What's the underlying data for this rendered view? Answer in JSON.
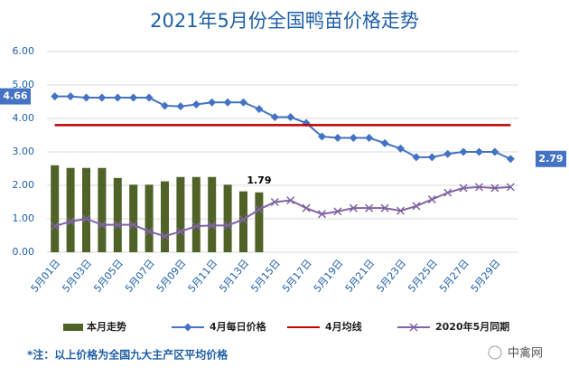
{
  "chart_data": {
    "type": "combo",
    "title": "2021年5月份全国鸭苗价格走势",
    "categories": [
      "5月01日",
      null,
      "5月03日",
      null,
      "5月05日",
      null,
      "5月07日",
      null,
      "5月09日",
      null,
      "5月11日",
      null,
      "5月13日",
      null,
      "5月15日",
      null,
      "5月17日",
      null,
      "5月19日",
      null,
      "5月21日",
      null,
      "5月23日",
      null,
      "5月25日",
      null,
      "5月27日",
      null,
      "5月29日",
      null
    ],
    "series": [
      {
        "name": "本月走势",
        "type": "bar",
        "color": "#4f6228",
        "values": [
          2.6,
          2.52,
          2.52,
          2.52,
          2.22,
          2.02,
          2.02,
          2.12,
          2.25,
          2.25,
          2.25,
          2.02,
          1.82,
          1.79,
          null,
          null,
          null,
          null,
          null,
          null,
          null,
          null,
          null,
          null,
          null,
          null,
          null,
          null,
          null,
          null
        ]
      },
      {
        "name": "4月每日价格",
        "type": "line",
        "marker": "diamond",
        "color": "#4472c4",
        "values": [
          4.66,
          4.66,
          4.62,
          4.62,
          4.62,
          4.62,
          4.62,
          4.38,
          4.36,
          4.42,
          4.48,
          4.48,
          4.48,
          4.28,
          4.04,
          4.04,
          3.86,
          3.46,
          3.42,
          3.42,
          3.42,
          3.26,
          3.1,
          2.84,
          2.84,
          2.94,
          3.0,
          3.0,
          3.0,
          2.79
        ]
      },
      {
        "name": "4月均线",
        "type": "line",
        "marker": "none",
        "color": "#c00000",
        "values": [
          3.8,
          3.8,
          3.8,
          3.8,
          3.8,
          3.8,
          3.8,
          3.8,
          3.8,
          3.8,
          3.8,
          3.8,
          3.8,
          3.8,
          3.8,
          3.8,
          3.8,
          3.8,
          3.8,
          3.8,
          3.8,
          3.8,
          3.8,
          3.8,
          3.8,
          3.8,
          3.8,
          3.8,
          3.8,
          3.8
        ]
      },
      {
        "name": "2020年5月同期",
        "type": "line",
        "marker": "x",
        "color": "#8064a2",
        "values": [
          0.78,
          0.92,
          1.0,
          0.82,
          0.82,
          0.82,
          0.62,
          0.48,
          0.62,
          0.78,
          0.8,
          0.8,
          0.98,
          1.28,
          1.5,
          1.55,
          1.32,
          1.14,
          1.22,
          1.32,
          1.32,
          1.32,
          1.24,
          1.38,
          1.58,
          1.78,
          1.92,
          1.95,
          1.92,
          1.95
        ]
      }
    ],
    "ylim": [
      0,
      6
    ],
    "yticks": [
      {
        "value": 0,
        "label": "0.00"
      },
      {
        "value": 1,
        "label": "1.00"
      },
      {
        "value": 2,
        "label": "2.00"
      },
      {
        "value": 3,
        "label": "3.00"
      },
      {
        "value": 4,
        "label": "4.00"
      },
      {
        "value": 5,
        "label": "5.00"
      },
      {
        "value": 6,
        "label": "6.00"
      }
    ],
    "grid": true,
    "legend": "bottom",
    "note": "*注：以上价格为全国九大主产区平均价格",
    "watermark": "中禽网"
  }
}
